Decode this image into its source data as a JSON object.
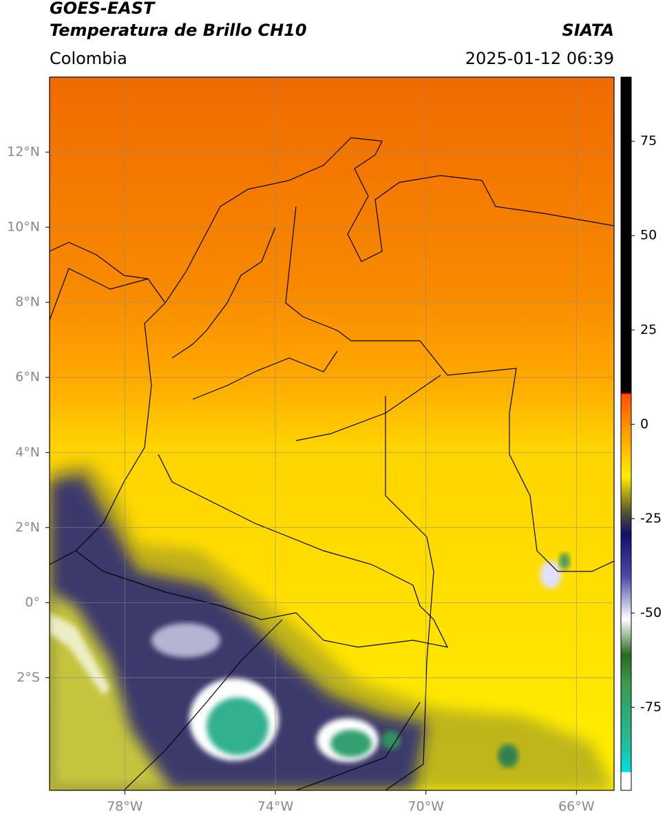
{
  "header": {
    "title": "GOES-EAST",
    "subtitle": "Temperatura de Brillo CH10",
    "region": "Colombia",
    "source": "SIATA",
    "datetime": "2025-01-12 06:39"
  },
  "map": {
    "lon_lim": [
      -80,
      -65
    ],
    "lat_lim": [
      -5,
      14
    ],
    "grid": true,
    "lon_ticks": [
      {
        "value": -78,
        "label": "78°W"
      },
      {
        "value": -74,
        "label": "74°W"
      },
      {
        "value": -70,
        "label": "70°W"
      },
      {
        "value": -66,
        "label": "66°W"
      }
    ],
    "lat_ticks": [
      {
        "value": 12,
        "label": "12°N"
      },
      {
        "value": 10,
        "label": "10°N"
      },
      {
        "value": 8,
        "label": "8°N"
      },
      {
        "value": 6,
        "label": "6°N"
      },
      {
        "value": 4,
        "label": "4°N"
      },
      {
        "value": 2,
        "label": "2°N"
      },
      {
        "value": 0,
        "label": "0°"
      },
      {
        "value": -2,
        "label": "2°S"
      }
    ]
  },
  "colorbar": {
    "lim": [
      -97,
      92
    ],
    "ticks": [
      75,
      50,
      25,
      0,
      -25,
      -50,
      -75
    ]
  }
}
